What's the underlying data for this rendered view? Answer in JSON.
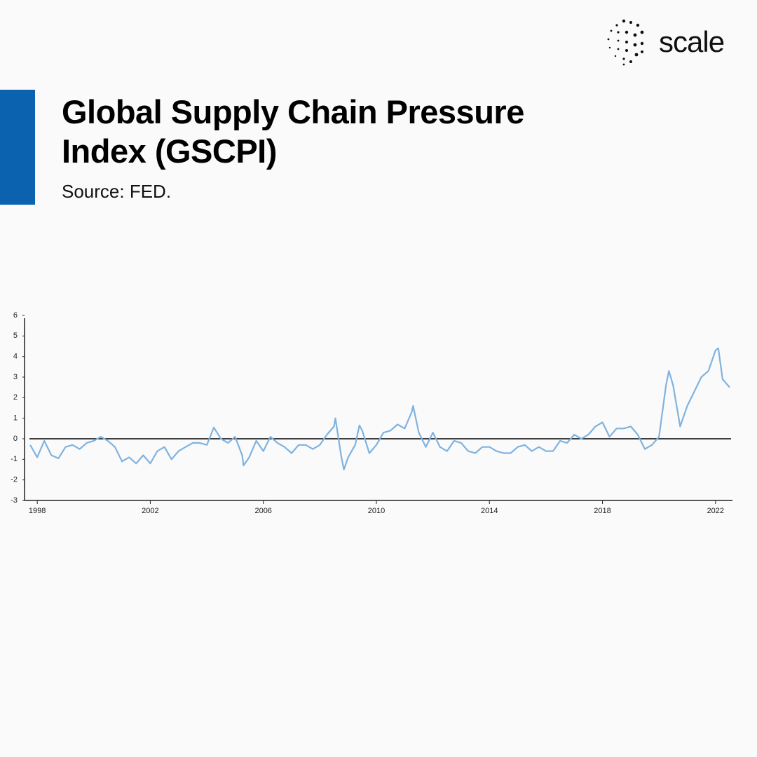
{
  "brand": "scale",
  "chart_data": {
    "type": "line",
    "title": "Global Supply Chain Pressure Index (GSCPI)",
    "subtitle": "Source: FED.",
    "x": [
      1997.75,
      1998,
      1998.25,
      1998.5,
      1998.75,
      1999,
      1999.25,
      1999.5,
      1999.75,
      2000,
      2000.25,
      2000.5,
      2000.75,
      2001,
      2001.25,
      2001.5,
      2001.75,
      2002,
      2002.25,
      2002.5,
      2002.75,
      2003,
      2003.25,
      2003.5,
      2003.75,
      2004,
      2004.25,
      2004.5,
      2004.75,
      2005,
      2005.25,
      2005.3,
      2005.5,
      2005.75,
      2006,
      2006.25,
      2006.5,
      2006.75,
      2007,
      2007.25,
      2007.5,
      2007.75,
      2008,
      2008.25,
      2008.5,
      2008.55,
      2008.75,
      2008.85,
      2009,
      2009.25,
      2009.4,
      2009.5,
      2009.75,
      2010,
      2010.25,
      2010.5,
      2010.75,
      2011,
      2011.25,
      2011.3,
      2011.5,
      2011.75,
      2012,
      2012.25,
      2012.5,
      2012.75,
      2013,
      2013.25,
      2013.5,
      2013.75,
      2014,
      2014.25,
      2014.5,
      2014.75,
      2015,
      2015.25,
      2015.5,
      2015.75,
      2016,
      2016.25,
      2016.5,
      2016.75,
      2017,
      2017.25,
      2017.5,
      2017.75,
      2018,
      2018.25,
      2018.5,
      2018.75,
      2019,
      2019.25,
      2019.5,
      2019.75,
      2020,
      2020.25,
      2020.35,
      2020.5,
      2020.75,
      2021,
      2021.25,
      2021.5,
      2021.75,
      2022,
      2022.1,
      2022.25,
      2022.5
    ],
    "values": [
      -0.3,
      -0.9,
      -0.1,
      -0.8,
      -0.95,
      -0.4,
      -0.3,
      -0.5,
      -0.2,
      -0.1,
      0.1,
      -0.1,
      -0.4,
      -1.1,
      -0.9,
      -1.2,
      -0.8,
      -1.2,
      -0.6,
      -0.4,
      -1.0,
      -0.6,
      -0.4,
      -0.2,
      -0.2,
      -0.3,
      0.55,
      0.0,
      -0.2,
      0.1,
      -0.8,
      -1.3,
      -0.9,
      -0.1,
      -0.6,
      0.1,
      -0.2,
      -0.4,
      -0.7,
      -0.3,
      -0.3,
      -0.5,
      -0.3,
      0.2,
      0.6,
      1.0,
      -0.8,
      -1.5,
      -0.9,
      -0.3,
      0.65,
      0.4,
      -0.7,
      -0.3,
      0.3,
      0.4,
      0.7,
      0.5,
      1.3,
      1.6,
      0.3,
      -0.4,
      0.3,
      -0.4,
      -0.6,
      -0.1,
      -0.2,
      -0.6,
      -0.7,
      -0.4,
      -0.4,
      -0.6,
      -0.7,
      -0.7,
      -0.4,
      -0.3,
      -0.6,
      -0.4,
      -0.6,
      -0.6,
      -0.1,
      -0.2,
      0.2,
      0.0,
      0.2,
      0.6,
      0.8,
      0.1,
      0.5,
      0.5,
      0.6,
      0.2,
      -0.5,
      -0.3,
      0.1,
      2.6,
      3.3,
      2.6,
      0.6,
      1.6,
      2.3,
      3.0,
      3.3,
      4.3,
      4.4,
      2.9,
      2.5
    ],
    "color": "#7fb3e0",
    "xlim": [
      1997.55,
      2022.6
    ],
    "xticks": [
      1998,
      2002,
      2006,
      2010,
      2014,
      2018,
      2022
    ],
    "ylim": [
      -3,
      6
    ],
    "yticks": [
      -3,
      -2,
      -1,
      0,
      1,
      2,
      3,
      4,
      5,
      6
    ]
  }
}
